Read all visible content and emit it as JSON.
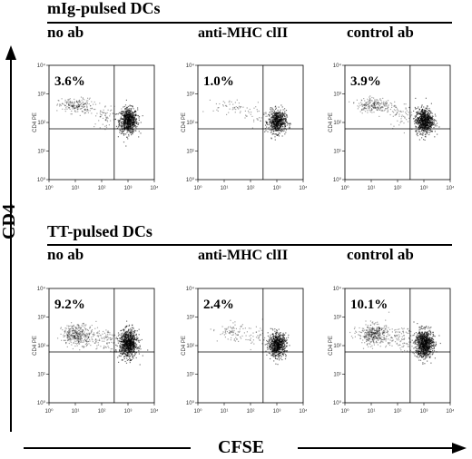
{
  "figure": {
    "y_axis_label": "CD4",
    "x_axis_label": "CFSE",
    "rows": [
      {
        "title": "mIg-pulsed DCs"
      },
      {
        "title": "TT-pulsed DCs"
      }
    ],
    "columns": [
      "no ab",
      "anti-MHC clII",
      "control ab"
    ]
  },
  "chart_data": [
    {
      "type": "scatter",
      "row": "mIg-pulsed DCs",
      "column": "no ab",
      "percent_label": "3.6%",
      "percent_value": 3.6,
      "xlabel": "",
      "ylabel": "CD4 PE",
      "xscale": "log",
      "yscale": "log",
      "xlim": [
        1,
        10000
      ],
      "ylim": [
        1,
        10000
      ],
      "gate": {
        "x": 300,
        "y": 60
      },
      "x_ticks": [
        "10⁰",
        "10¹",
        "10²",
        "10³",
        "10⁴"
      ],
      "y_ticks": [
        "10⁰",
        "10¹",
        "10²",
        "10³",
        "10⁴"
      ],
      "clusters": [
        {
          "cx": 1000,
          "cy": 120,
          "sx": 0.17,
          "sy": 0.22,
          "n": 750
        },
        {
          "cx": 10,
          "cy": 400,
          "sx": 0.32,
          "sy": 0.13,
          "n": 190
        },
        {
          "cx": 120,
          "cy": 180,
          "sx": 0.25,
          "sy": 0.2,
          "n": 60
        }
      ]
    },
    {
      "type": "scatter",
      "row": "mIg-pulsed DCs",
      "column": "anti-MHC clII",
      "percent_label": "1.0%",
      "percent_value": 1.0,
      "xlabel": "",
      "ylabel": "CD4 PE",
      "xscale": "log",
      "yscale": "log",
      "xlim": [
        1,
        10000
      ],
      "ylim": [
        1,
        10000
      ],
      "gate": {
        "x": 300,
        "y": 60
      },
      "x_ticks": [
        "10⁰",
        "10¹",
        "10²",
        "10³",
        "10⁴"
      ],
      "y_ticks": [
        "10⁰",
        "10¹",
        "10²",
        "10³",
        "10⁴"
      ],
      "clusters": [
        {
          "cx": 1000,
          "cy": 110,
          "sx": 0.17,
          "sy": 0.2,
          "n": 620
        },
        {
          "cx": 15,
          "cy": 380,
          "sx": 0.3,
          "sy": 0.12,
          "n": 45
        },
        {
          "cx": 150,
          "cy": 200,
          "sx": 0.22,
          "sy": 0.2,
          "n": 30
        }
      ]
    },
    {
      "type": "scatter",
      "row": "mIg-pulsed DCs",
      "column": "control ab",
      "percent_label": "3.9%",
      "percent_value": 3.9,
      "xlabel": "",
      "ylabel": "CD4 PE",
      "xscale": "log",
      "yscale": "log",
      "xlim": [
        1,
        10000
      ],
      "ylim": [
        1,
        10000
      ],
      "gate": {
        "x": 300,
        "y": 60
      },
      "x_ticks": [
        "10⁰",
        "10¹",
        "10²",
        "10³",
        "10⁴"
      ],
      "y_ticks": [
        "10⁰",
        "10¹",
        "10²",
        "10³",
        "10⁴"
      ],
      "clusters": [
        {
          "cx": 1000,
          "cy": 120,
          "sx": 0.17,
          "sy": 0.22,
          "n": 760
        },
        {
          "cx": 12,
          "cy": 420,
          "sx": 0.32,
          "sy": 0.13,
          "n": 210
        },
        {
          "cx": 120,
          "cy": 190,
          "sx": 0.25,
          "sy": 0.2,
          "n": 60
        }
      ]
    },
    {
      "type": "scatter",
      "row": "TT-pulsed DCs",
      "column": "no ab",
      "percent_label": "9.2%",
      "percent_value": 9.2,
      "xlabel": "",
      "ylabel": "CD4 PE",
      "xscale": "log",
      "yscale": "log",
      "xlim": [
        1,
        10000
      ],
      "ylim": [
        1,
        10000
      ],
      "gate": {
        "x": 300,
        "y": 60
      },
      "x_ticks": [
        "10⁰",
        "10¹",
        "10²",
        "10³",
        "10⁴"
      ],
      "y_ticks": [
        "10⁰",
        "10¹",
        "10²",
        "10³",
        "10⁴"
      ],
      "clusters": [
        {
          "cx": 1000,
          "cy": 120,
          "sx": 0.17,
          "sy": 0.24,
          "n": 850
        },
        {
          "cx": 12,
          "cy": 250,
          "sx": 0.3,
          "sy": 0.18,
          "n": 360
        },
        {
          "cx": 120,
          "cy": 180,
          "sx": 0.25,
          "sy": 0.2,
          "n": 90
        }
      ]
    },
    {
      "type": "scatter",
      "row": "TT-pulsed DCs",
      "column": "anti-MHC clII",
      "percent_label": "2.4%",
      "percent_value": 2.4,
      "xlabel": "",
      "ylabel": "CD4 PE",
      "xscale": "log",
      "yscale": "log",
      "xlim": [
        1,
        10000
      ],
      "ylim": [
        1,
        10000
      ],
      "gate": {
        "x": 300,
        "y": 60
      },
      "x_ticks": [
        "10⁰",
        "10¹",
        "10²",
        "10³",
        "10⁴"
      ],
      "y_ticks": [
        "10⁰",
        "10¹",
        "10²",
        "10³",
        "10⁴"
      ],
      "clusters": [
        {
          "cx": 1000,
          "cy": 110,
          "sx": 0.17,
          "sy": 0.2,
          "n": 700
        },
        {
          "cx": 20,
          "cy": 300,
          "sx": 0.28,
          "sy": 0.15,
          "n": 80
        },
        {
          "cx": 150,
          "cy": 190,
          "sx": 0.22,
          "sy": 0.2,
          "n": 35
        }
      ]
    },
    {
      "type": "scatter",
      "row": "TT-pulsed DCs",
      "column": "control ab",
      "percent_label": "10.1%",
      "percent_value": 10.1,
      "xlabel": "",
      "ylabel": "CD4 PE",
      "xscale": "log",
      "yscale": "log",
      "xlim": [
        1,
        10000
      ],
      "ylim": [
        1,
        10000
      ],
      "gate": {
        "x": 300,
        "y": 60
      },
      "x_ticks": [
        "10⁰",
        "10¹",
        "10²",
        "10³",
        "10⁴"
      ],
      "y_ticks": [
        "10⁰",
        "10¹",
        "10²",
        "10³",
        "10⁴"
      ],
      "clusters": [
        {
          "cx": 1000,
          "cy": 120,
          "sx": 0.17,
          "sy": 0.24,
          "n": 860
        },
        {
          "cx": 12,
          "cy": 260,
          "sx": 0.3,
          "sy": 0.18,
          "n": 380
        },
        {
          "cx": 120,
          "cy": 180,
          "sx": 0.25,
          "sy": 0.2,
          "n": 90
        }
      ]
    }
  ]
}
